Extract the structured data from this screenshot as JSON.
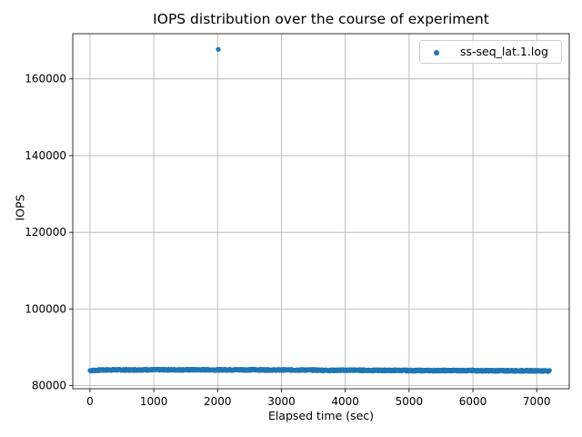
{
  "chart_data": {
    "type": "scatter",
    "title": "IOPS distribution over the course of experiment",
    "xlabel": "Elapsed time (sec)",
    "ylabel": "IOPS",
    "xlim": [
      -270,
      7510
    ],
    "ylim": [
      79200,
      171800
    ],
    "xticks": [
      0,
      1000,
      2000,
      3000,
      4000,
      5000,
      6000,
      7000
    ],
    "yticks": [
      80000,
      100000,
      120000,
      140000,
      160000
    ],
    "grid": true,
    "legend_position": "top-right",
    "color": "#1f77b4",
    "series": [
      {
        "name": "ss-seq_lat.1.log",
        "baseline": [
          [
            0,
            83950
          ],
          [
            200,
            84100
          ],
          [
            400,
            84150
          ],
          [
            600,
            84100
          ],
          [
            800,
            84150
          ],
          [
            1000,
            84150
          ],
          [
            1200,
            84150
          ],
          [
            1400,
            84150
          ],
          [
            1600,
            84150
          ],
          [
            1800,
            84150
          ],
          [
            2000,
            84150
          ],
          [
            2200,
            84150
          ],
          [
            2400,
            84150
          ],
          [
            2600,
            84150
          ],
          [
            2800,
            84100
          ],
          [
            3000,
            84100
          ],
          [
            3200,
            84100
          ],
          [
            3400,
            84100
          ],
          [
            3600,
            84050
          ],
          [
            3800,
            84000
          ],
          [
            4000,
            84050
          ],
          [
            4200,
            84050
          ],
          [
            4400,
            84000
          ],
          [
            4600,
            84000
          ],
          [
            4800,
            84000
          ],
          [
            5000,
            83950
          ],
          [
            5200,
            83950
          ],
          [
            5400,
            83950
          ],
          [
            5600,
            83950
          ],
          [
            5800,
            83950
          ],
          [
            6000,
            83950
          ],
          [
            6200,
            83900
          ],
          [
            6400,
            83900
          ],
          [
            6600,
            83900
          ],
          [
            6800,
            83900
          ],
          [
            7000,
            83900
          ],
          [
            7200,
            83850
          ]
        ],
        "outliers": [
          [
            2010,
            167700
          ]
        ]
      }
    ]
  }
}
